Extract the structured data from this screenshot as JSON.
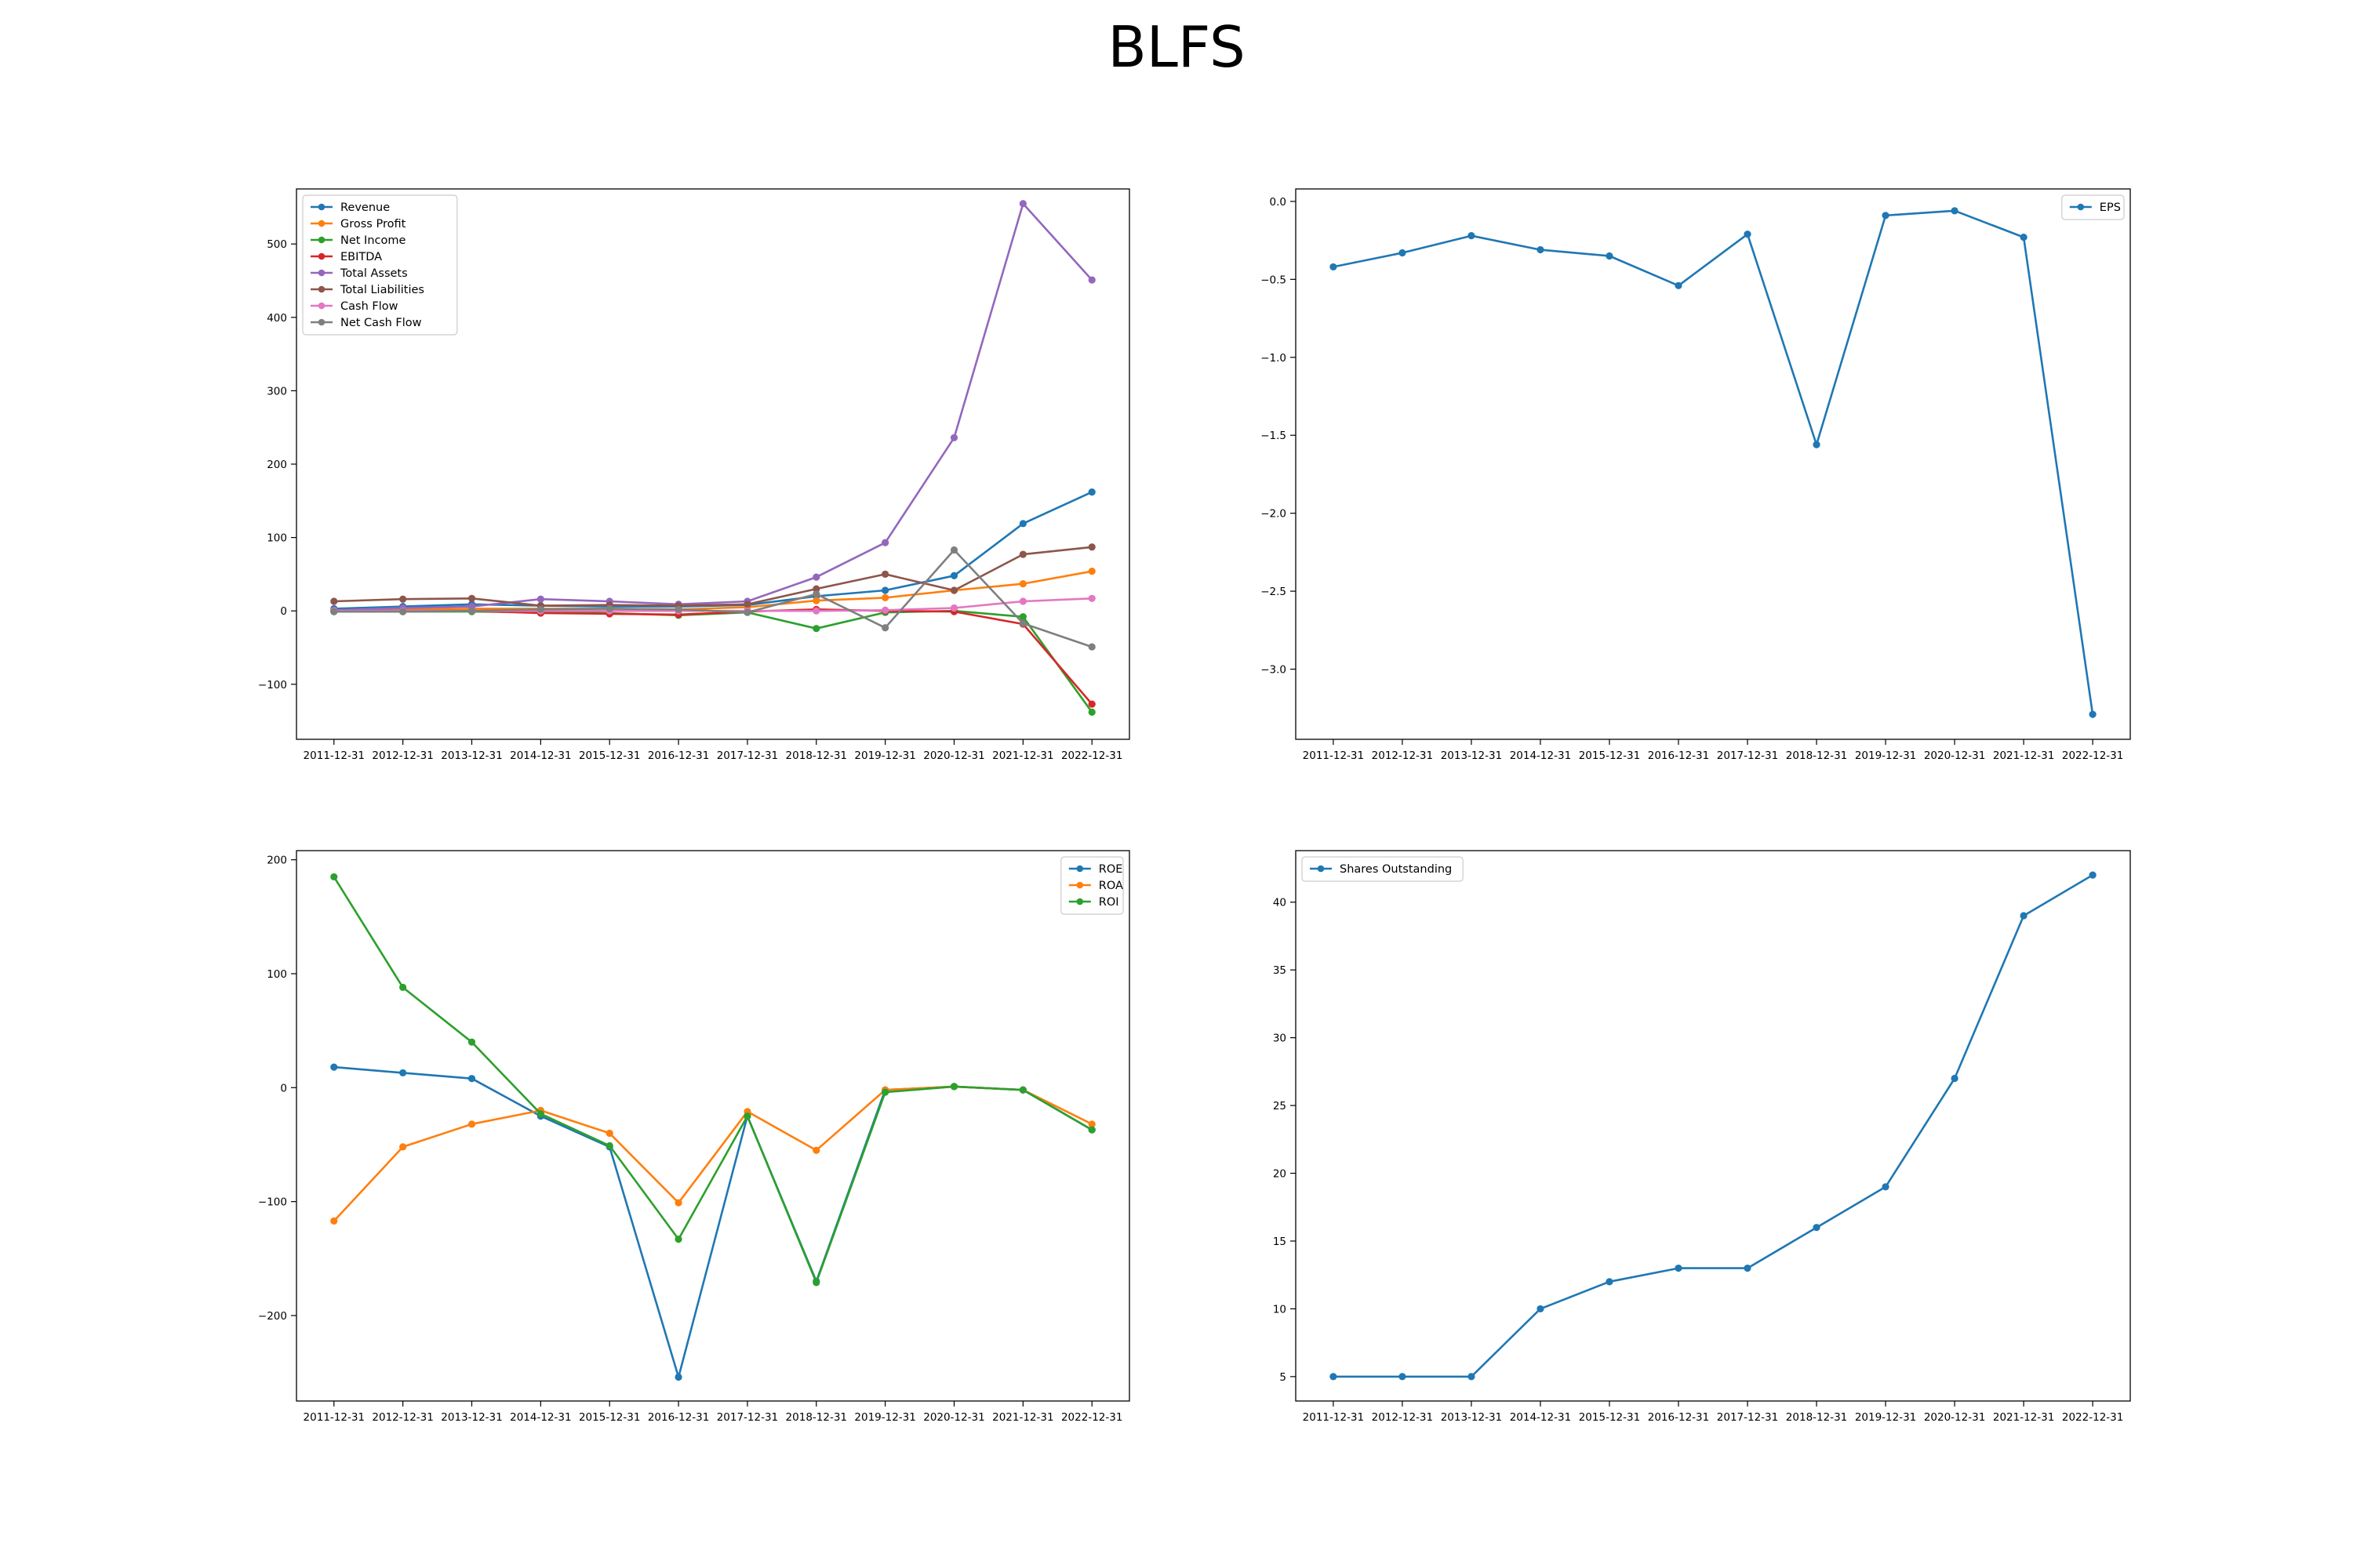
{
  "title": "BLFS",
  "colors": {
    "blue": "#1f77b4",
    "orange": "#ff7f0e",
    "green": "#2ca02c",
    "red": "#d62728",
    "purple": "#9467bd",
    "brown": "#8c564b",
    "pink": "#e377c2",
    "gray": "#7f7f7f"
  },
  "chart_data": [
    {
      "type": "line",
      "title": "",
      "legend_position": "top-left",
      "categories": [
        "2011-12-31",
        "2012-12-31",
        "2013-12-31",
        "2014-12-31",
        "2015-12-31",
        "2016-12-31",
        "2017-12-31",
        "2018-12-31",
        "2019-12-31",
        "2020-12-31",
        "2021-12-31",
        "2022-12-31"
      ],
      "ylim": [
        -175,
        575
      ],
      "yticks": [
        -100,
        0,
        100,
        200,
        300,
        400,
        500
      ],
      "series": [
        {
          "name": "Revenue",
          "color": "#1f77b4",
          "values": [
            3,
            6,
            9,
            7,
            6,
            6,
            8,
            20,
            28,
            48,
            119,
            162
          ]
        },
        {
          "name": "Gross Profit",
          "color": "#ff7f0e",
          "values": [
            1,
            2,
            3,
            3,
            3,
            2,
            5,
            14,
            18,
            28,
            37,
            54
          ]
        },
        {
          "name": "Net Income",
          "color": "#2ca02c",
          "values": [
            -1,
            -1,
            -1,
            -2,
            -3,
            -6,
            -2,
            -24,
            -2,
            0,
            -8,
            -138
          ]
        },
        {
          "name": "EBITDA",
          "color": "#d62728",
          "values": [
            0,
            0,
            0,
            -3,
            -4,
            -5,
            -1,
            2,
            0,
            -1,
            -18,
            -127
          ]
        },
        {
          "name": "Total Assets",
          "color": "#9467bd",
          "values": [
            1,
            4,
            6,
            16,
            13,
            9,
            13,
            46,
            93,
            236,
            555,
            451
          ]
        },
        {
          "name": "Total Liabilities",
          "color": "#8c564b",
          "values": [
            13,
            16,
            17,
            7,
            8,
            7,
            9,
            30,
            50,
            28,
            77,
            87
          ]
        },
        {
          "name": "Cash Flow",
          "color": "#e377c2",
          "values": [
            0,
            0,
            0,
            0,
            0,
            0,
            0,
            0,
            1,
            4,
            13,
            17
          ]
        },
        {
          "name": "Net Cash Flow",
          "color": "#7f7f7f",
          "values": [
            -1,
            -1,
            0,
            2,
            3,
            2,
            -2,
            23,
            -23,
            83,
            -17,
            -49
          ]
        }
      ]
    },
    {
      "type": "line",
      "title": "",
      "legend_position": "top-right",
      "categories": [
        "2011-12-31",
        "2012-12-31",
        "2013-12-31",
        "2014-12-31",
        "2015-12-31",
        "2016-12-31",
        "2017-12-31",
        "2018-12-31",
        "2019-12-31",
        "2020-12-31",
        "2021-12-31",
        "2022-12-31"
      ],
      "ylim": [
        -3.45,
        0.08
      ],
      "yticks": [
        -3.0,
        -2.5,
        -2.0,
        -1.5,
        -1.0,
        -0.5,
        0.0
      ],
      "ytick_labels": [
        "−3.0",
        "−2.5",
        "−2.0",
        "−1.5",
        "−1.0",
        "−0.5",
        "0.0"
      ],
      "series": [
        {
          "name": "EPS",
          "color": "#1f77b4",
          "values": [
            -0.42,
            -0.33,
            -0.22,
            -0.31,
            -0.35,
            -0.54,
            -0.21,
            -1.56,
            -0.09,
            -0.06,
            -0.23,
            -3.29
          ]
        }
      ]
    },
    {
      "type": "line",
      "title": "",
      "legend_position": "top-right",
      "categories": [
        "2011-12-31",
        "2012-12-31",
        "2013-12-31",
        "2014-12-31",
        "2015-12-31",
        "2016-12-31",
        "2017-12-31",
        "2018-12-31",
        "2019-12-31",
        "2020-12-31",
        "2021-12-31",
        "2022-12-31"
      ],
      "ylim": [
        -275,
        208
      ],
      "yticks": [
        -200,
        -100,
        0,
        100,
        200
      ],
      "series": [
        {
          "name": "ROE",
          "color": "#1f77b4",
          "values": [
            18,
            13,
            8,
            -25,
            -52,
            -254,
            -25,
            -170,
            -2,
            1,
            -2,
            -37
          ]
        },
        {
          "name": "ROA",
          "color": "#ff7f0e",
          "values": [
            -117,
            -52,
            -32,
            -20,
            -40,
            -101,
            -21,
            -55,
            -2,
            1,
            -2,
            -32
          ]
        },
        {
          "name": "ROI",
          "color": "#2ca02c",
          "values": [
            185,
            88,
            40,
            -23,
            -51,
            -133,
            -25,
            -171,
            -4,
            1,
            -2,
            -37
          ]
        }
      ]
    },
    {
      "type": "line",
      "title": "",
      "legend_position": "top-left",
      "categories": [
        "2011-12-31",
        "2012-12-31",
        "2013-12-31",
        "2014-12-31",
        "2015-12-31",
        "2016-12-31",
        "2017-12-31",
        "2018-12-31",
        "2019-12-31",
        "2020-12-31",
        "2021-12-31",
        "2022-12-31"
      ],
      "ylim": [
        3.2,
        43.8
      ],
      "yticks": [
        5,
        10,
        15,
        20,
        25,
        30,
        35,
        40
      ],
      "series": [
        {
          "name": "Shares Outstanding",
          "color": "#1f77b4",
          "values": [
            5,
            5,
            5,
            10,
            12,
            13,
            13,
            16,
            19,
            27,
            39,
            42
          ]
        }
      ]
    }
  ]
}
